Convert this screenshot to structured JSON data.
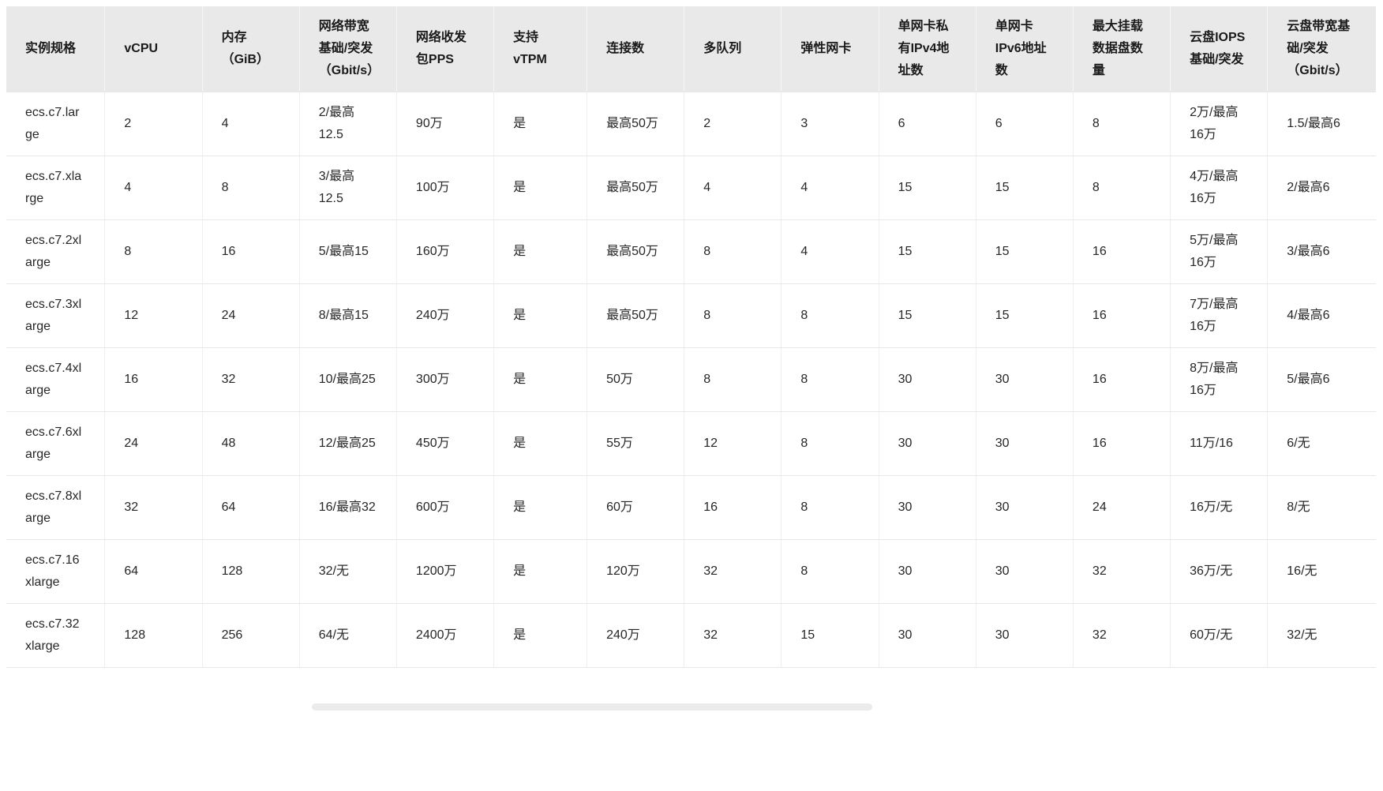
{
  "table": {
    "columns": [
      {
        "id": "spec",
        "label": "实例规格"
      },
      {
        "id": "vcpu",
        "label": "vCPU"
      },
      {
        "id": "memory",
        "label": "内存（GiB）"
      },
      {
        "id": "net-bandwidth",
        "label": "网络带宽基础/突发（Gbit/s）"
      },
      {
        "id": "pps",
        "label": "网络收发包PPS"
      },
      {
        "id": "vtpm",
        "label": "支持vTPM"
      },
      {
        "id": "connections",
        "label": "连接数"
      },
      {
        "id": "queues",
        "label": "多队列"
      },
      {
        "id": "eni",
        "label": "弹性网卡"
      },
      {
        "id": "ipv4-per-eni",
        "label": "单网卡私有IPv4地址数"
      },
      {
        "id": "ipv6-per-eni",
        "label": "单网卡IPv6地址数"
      },
      {
        "id": "max-data-disks",
        "label": "最大挂载数据盘数量"
      },
      {
        "id": "disk-iops",
        "label": "云盘IOPS基础/突发"
      },
      {
        "id": "disk-bandwidth",
        "label": "云盘带宽基础/突发（Gbit/s）"
      }
    ],
    "rows": [
      {
        "cells": [
          "ecs.c7.large",
          "2",
          "4",
          "2/最高12.5",
          "90万",
          "是",
          "最高50万",
          "2",
          "3",
          "6",
          "6",
          "8",
          "2万/最高16万",
          "1.5/最高6"
        ]
      },
      {
        "cells": [
          "ecs.c7.xlarge",
          "4",
          "8",
          "3/最高12.5",
          "100万",
          "是",
          "最高50万",
          "4",
          "4",
          "15",
          "15",
          "8",
          "4万/最高16万",
          "2/最高6"
        ]
      },
      {
        "cells": [
          "ecs.c7.2xlarge",
          "8",
          "16",
          "5/最高15",
          "160万",
          "是",
          "最高50万",
          "8",
          "4",
          "15",
          "15",
          "16",
          "5万/最高16万",
          "3/最高6"
        ]
      },
      {
        "cells": [
          "ecs.c7.3xlarge",
          "12",
          "24",
          "8/最高15",
          "240万",
          "是",
          "最高50万",
          "8",
          "8",
          "15",
          "15",
          "16",
          "7万/最高16万",
          "4/最高6"
        ]
      },
      {
        "cells": [
          "ecs.c7.4xlarge",
          "16",
          "32",
          "10/最高25",
          "300万",
          "是",
          "50万",
          "8",
          "8",
          "30",
          "30",
          "16",
          "8万/最高16万",
          "5/最高6"
        ]
      },
      {
        "cells": [
          "ecs.c7.6xlarge",
          "24",
          "48",
          "12/最高25",
          "450万",
          "是",
          "55万",
          "12",
          "8",
          "30",
          "30",
          "16",
          "11万/16",
          "6/无"
        ]
      },
      {
        "cells": [
          "ecs.c7.8xlarge",
          "32",
          "64",
          "16/最高32",
          "600万",
          "是",
          "60万",
          "16",
          "8",
          "30",
          "30",
          "24",
          "16万/无",
          "8/无"
        ]
      },
      {
        "cells": [
          "ecs.c7.16xlarge",
          "64",
          "128",
          "32/无",
          "1200万",
          "是",
          "120万",
          "32",
          "8",
          "30",
          "30",
          "32",
          "36万/无",
          "16/无"
        ]
      },
      {
        "cells": [
          "ecs.c7.32xlarge",
          "128",
          "256",
          "64/无",
          "2400万",
          "是",
          "240万",
          "32",
          "15",
          "30",
          "30",
          "32",
          "60万/无",
          "32/无"
        ]
      }
    ]
  },
  "colors": {
    "page_bg": "#ffffff",
    "header_bg": "#e9e9e9",
    "header_divider": "#f6f6f6",
    "row_border": "#e8e8e8",
    "column_divider": "#efefef",
    "text": "#262626",
    "header_text": "#1a1a1a",
    "scrollbar": "#ebebeb"
  }
}
